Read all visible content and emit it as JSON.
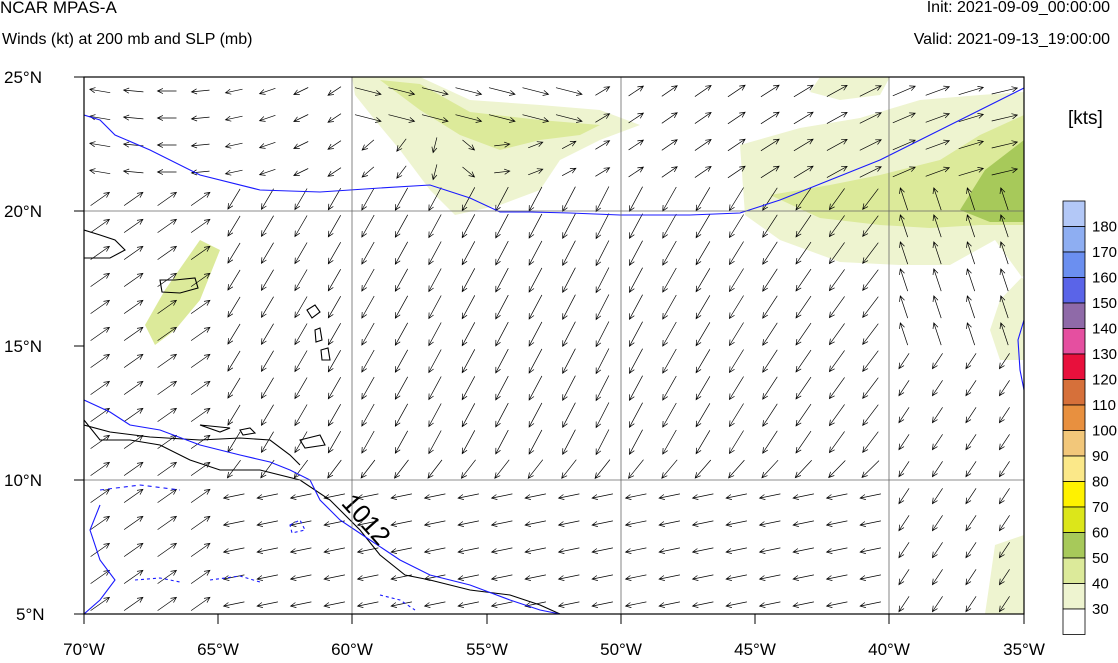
{
  "header": {
    "model_title": "NCAR MPAS-A",
    "field_subtitle": "Winds (kt) at 200 mb and SLP (mb)",
    "init_label": "Init: 2021-09-09_00:00:00",
    "valid_label": "Valid: 2021-09-13_19:00:00"
  },
  "map": {
    "lon_labels": [
      "70°W",
      "65°W",
      "60°W",
      "55°W",
      "50°W",
      "45°W",
      "40°W",
      "35°W"
    ],
    "lat_labels": [
      "25°N",
      "20°N",
      "15°N",
      "10°N",
      "5°N"
    ],
    "gridlines_lon": [
      "60°W",
      "50°W",
      "40°W"
    ],
    "gridlines_lat": [
      "20°N",
      "10°N"
    ],
    "isobar_label": "1012",
    "colors": {
      "coastline": "#000000",
      "isobar": "#1a1aff",
      "wind_arrows": "#000000",
      "grid": "#555555"
    }
  },
  "colorbar": {
    "units_label": "[kts]",
    "levels": [
      {
        "value": "180",
        "color": "#b3c8f7"
      },
      {
        "value": "170",
        "color": "#8eaef2"
      },
      {
        "value": "160",
        "color": "#6b8ff0"
      },
      {
        "value": "150",
        "color": "#5a64e8"
      },
      {
        "value": "140",
        "color": "#8f6aa8"
      },
      {
        "value": "130",
        "color": "#e54fa0"
      },
      {
        "value": "120",
        "color": "#e8103c"
      },
      {
        "value": "110",
        "color": "#d6703a"
      },
      {
        "value": "100",
        "color": "#e8903f"
      },
      {
        "value": "90",
        "color": "#f2c77a"
      },
      {
        "value": "80",
        "color": "#fbe889"
      },
      {
        "value": "70",
        "color": "#fff200"
      },
      {
        "value": "60",
        "color": "#dce61a"
      },
      {
        "value": "50",
        "color": "#a7c95a"
      },
      {
        "value": "40",
        "color": "#dcea9a"
      },
      {
        "value": "30",
        "color": "#eef4d0"
      },
      {
        "value": "",
        "color": "#ffffff"
      }
    ]
  }
}
